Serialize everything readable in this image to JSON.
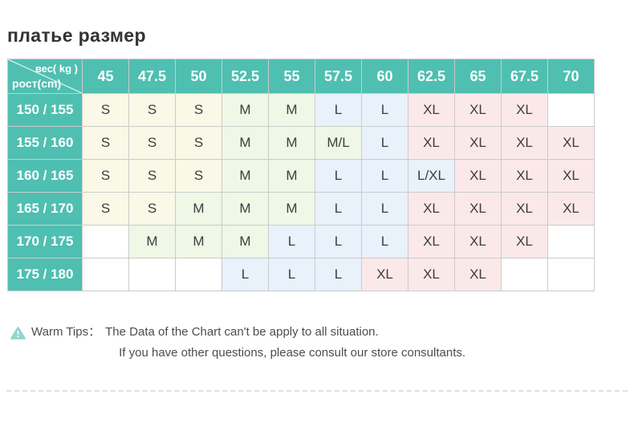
{
  "chart_data": {
    "type": "table",
    "title": "платье размер",
    "corner_labels": {
      "top_right": "вес( kg )",
      "bottom_left": "рост(cm)"
    },
    "weight_columns_kg": [
      "45",
      "47.5",
      "50",
      "52.5",
      "55",
      "57.5",
      "60",
      "62.5",
      "65",
      "67.5",
      "70"
    ],
    "rows": [
      {
        "height_cm": "150 / 155",
        "cells": [
          "S",
          "S",
          "S",
          "M",
          "M",
          "L",
          "L",
          "XL",
          "XL",
          "XL",
          ""
        ]
      },
      {
        "height_cm": "155 / 160",
        "cells": [
          "S",
          "S",
          "S",
          "M",
          "M",
          "M/L",
          "L",
          "XL",
          "XL",
          "XL",
          "XL"
        ]
      },
      {
        "height_cm": "160 / 165",
        "cells": [
          "S",
          "S",
          "S",
          "M",
          "M",
          "L",
          "L",
          "L/XL",
          "XL",
          "XL",
          "XL"
        ]
      },
      {
        "height_cm": "165 / 170",
        "cells": [
          "S",
          "S",
          "M",
          "M",
          "M",
          "L",
          "L",
          "XL",
          "XL",
          "XL",
          "XL"
        ]
      },
      {
        "height_cm": "170 / 175",
        "cells": [
          "",
          "M",
          "M",
          "M",
          "L",
          "L",
          "L",
          "XL",
          "XL",
          "XL",
          ""
        ]
      },
      {
        "height_cm": "175 / 180",
        "cells": [
          "",
          "",
          "",
          "L",
          "L",
          "L",
          "XL",
          "XL",
          "XL",
          "",
          ""
        ]
      }
    ],
    "colors": {
      "header_teal": "#4FBFB1",
      "grid_border": "#CBCBCB",
      "size_S": "#FAF8E6",
      "size_M": "#EFF7E6",
      "size_ML": "#EFF7E6",
      "size_L": "#E9F1FA",
      "size_LXL": "#E9F1FA",
      "size_XL": "#FBE9E9",
      "empty": "#FFFFFF"
    }
  },
  "tips": {
    "label": "Warm Tips：",
    "lines": [
      "The Data of the Chart can't be apply to all situation.",
      "If you have other questions, please consult our store consultants."
    ],
    "icon_color": "#93D5CC"
  }
}
